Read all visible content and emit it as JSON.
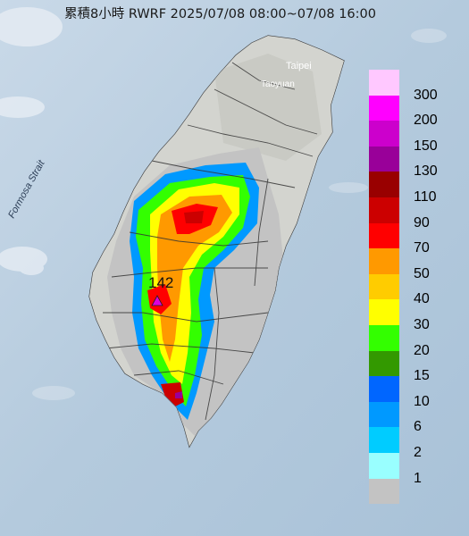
{
  "title": "累積8小時 RWRF 2025/07/08 08:00~07/08 16:00",
  "labels": {
    "taipei": "Taipei",
    "taoyuan": "Taoyuan",
    "strait": "Formosa Strait",
    "max_value": "142"
  },
  "legend": [
    {
      "label": "300",
      "color": "#ffc8ff"
    },
    {
      "label": "200",
      "color": "#ff00ff"
    },
    {
      "label": "150",
      "color": "#cc00cc"
    },
    {
      "label": "130",
      "color": "#990099"
    },
    {
      "label": "110",
      "color": "#990000"
    },
    {
      "label": "90",
      "color": "#cc0000"
    },
    {
      "label": "70",
      "color": "#ff0000"
    },
    {
      "label": "50",
      "color": "#ff9900"
    },
    {
      "label": "40",
      "color": "#ffcc00"
    },
    {
      "label": "30",
      "color": "#ffff00"
    },
    {
      "label": "20",
      "color": "#33ff00"
    },
    {
      "label": "15",
      "color": "#339900"
    },
    {
      "label": "10",
      "color": "#0066ff"
    },
    {
      "label": "6",
      "color": "#0099ff"
    },
    {
      "label": "2",
      "color": "#00ccff"
    },
    {
      "label": "1",
      "color": "#99ffff"
    },
    {
      "label": "",
      "color": "#c3c3c3"
    }
  ]
}
